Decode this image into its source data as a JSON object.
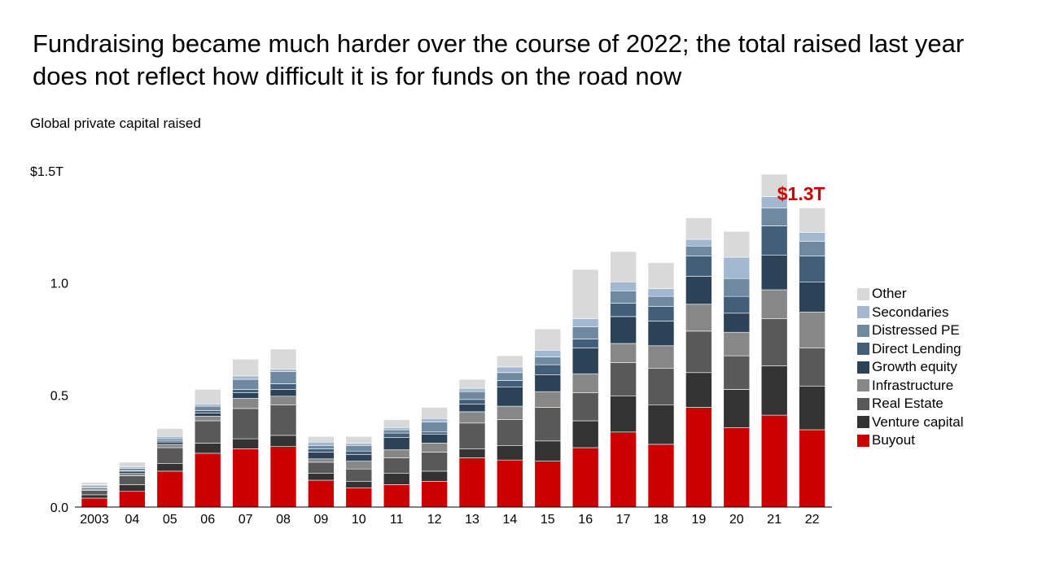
{
  "header": {
    "headline": "Fundraising became much harder over the course of 2022; the total raised last year does not reflect how difficult it is for funds on the road now",
    "subtitle": "Global private capital raised"
  },
  "chart_data": {
    "type": "bar",
    "stacked": true,
    "categories": [
      "2003",
      "04",
      "05",
      "06",
      "07",
      "08",
      "09",
      "10",
      "11",
      "12",
      "13",
      "14",
      "15",
      "16",
      "17",
      "18",
      "19",
      "20",
      "21",
      "22"
    ],
    "y_ticks": [
      {
        "value": 0,
        "label": "0.0"
      },
      {
        "value": 0.5,
        "label": "0.5"
      },
      {
        "value": 1.0,
        "label": "1.0"
      },
      {
        "value": 1.5,
        "label": "$1.5T"
      }
    ],
    "ylim": [
      0,
      1.5
    ],
    "grid": false,
    "legend_position": "right",
    "annotation": {
      "category": "22",
      "text": "$1.3T",
      "color": "#cc0000"
    },
    "series": [
      {
        "name": "Buyout",
        "color": "#cc0000",
        "values": [
          0.04,
          0.07,
          0.16,
          0.24,
          0.26,
          0.27,
          0.12,
          0.085,
          0.1,
          0.115,
          0.22,
          0.21,
          0.205,
          0.265,
          0.335,
          0.28,
          0.445,
          0.355,
          0.41,
          0.345
        ]
      },
      {
        "name": "Venture capital",
        "color": "#333333",
        "values": [
          0.015,
          0.03,
          0.035,
          0.045,
          0.045,
          0.05,
          0.03,
          0.03,
          0.05,
          0.045,
          0.04,
          0.065,
          0.09,
          0.12,
          0.16,
          0.175,
          0.155,
          0.17,
          0.22,
          0.195
        ]
      },
      {
        "name": "Real Estate",
        "color": "#595959",
        "values": [
          0.02,
          0.04,
          0.07,
          0.1,
          0.135,
          0.135,
          0.05,
          0.055,
          0.07,
          0.085,
          0.115,
          0.115,
          0.15,
          0.125,
          0.15,
          0.165,
          0.185,
          0.15,
          0.21,
          0.17
        ]
      },
      {
        "name": "Infrastructure",
        "color": "#878787",
        "values": [
          0.005,
          0.01,
          0.015,
          0.02,
          0.045,
          0.04,
          0.015,
          0.035,
          0.035,
          0.04,
          0.05,
          0.06,
          0.07,
          0.085,
          0.085,
          0.1,
          0.12,
          0.105,
          0.13,
          0.16
        ]
      },
      {
        "name": "Growth equity",
        "color": "#2b4257",
        "values": [
          0.005,
          0.01,
          0.01,
          0.015,
          0.025,
          0.03,
          0.03,
          0.03,
          0.055,
          0.04,
          0.035,
          0.085,
          0.075,
          0.115,
          0.12,
          0.11,
          0.125,
          0.085,
          0.155,
          0.135
        ]
      },
      {
        "name": "Direct Lending",
        "color": "#425e78",
        "values": [
          0.003,
          0.003,
          0.005,
          0.01,
          0.015,
          0.025,
          0.015,
          0.015,
          0.02,
          0.01,
          0.02,
          0.03,
          0.045,
          0.04,
          0.06,
          0.065,
          0.09,
          0.075,
          0.13,
          0.115
        ]
      },
      {
        "name": "Distressed PE",
        "color": "#6f89a1",
        "values": [
          0.007,
          0.01,
          0.01,
          0.02,
          0.045,
          0.055,
          0.015,
          0.025,
          0.015,
          0.045,
          0.035,
          0.035,
          0.035,
          0.055,
          0.055,
          0.045,
          0.045,
          0.08,
          0.08,
          0.065
        ]
      },
      {
        "name": "Secondaries",
        "color": "#a2b8d1",
        "values": [
          0.005,
          0.007,
          0.01,
          0.01,
          0.015,
          0.01,
          0.015,
          0.01,
          0.01,
          0.015,
          0.015,
          0.025,
          0.03,
          0.035,
          0.04,
          0.035,
          0.03,
          0.095,
          0.05,
          0.04
        ]
      },
      {
        "name": "Other",
        "color": "#d9d9d9",
        "values": [
          0.01,
          0.02,
          0.035,
          0.065,
          0.075,
          0.09,
          0.025,
          0.03,
          0.035,
          0.05,
          0.04,
          0.05,
          0.095,
          0.22,
          0.135,
          0.115,
          0.095,
          0.115,
          0.1,
          0.11
        ]
      }
    ]
  }
}
